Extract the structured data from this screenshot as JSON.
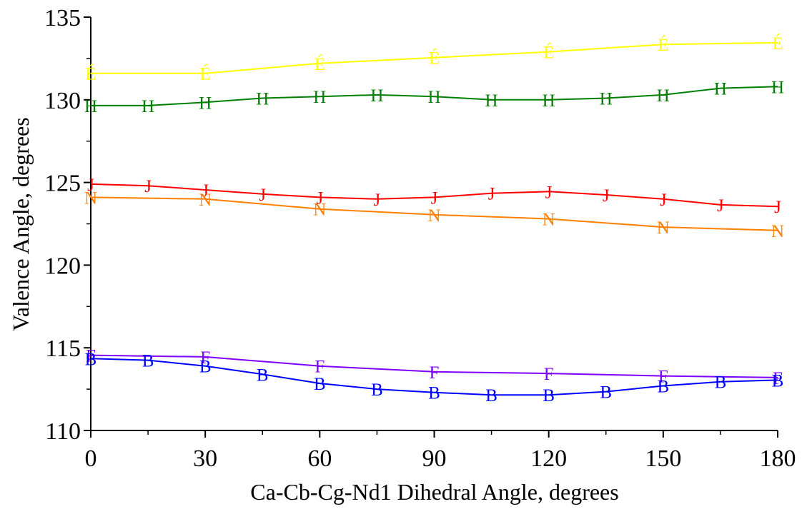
{
  "chart_data": {
    "type": "line",
    "xlabel": "Ca-Cb-Cg-Nd1 Dihedral Angle, degrees",
    "ylabel": "Valence Angle, degrees",
    "xlim": [
      0,
      180
    ],
    "ylim": [
      110,
      135
    ],
    "xticks": [
      0,
      30,
      60,
      90,
      120,
      150,
      180
    ],
    "yticks": [
      110,
      115,
      120,
      125,
      130,
      135
    ],
    "x_minor_ticks": [
      15,
      45,
      75,
      105,
      135,
      165
    ],
    "y_minor_ticks": [
      112.5,
      117.5,
      122.5,
      127.5,
      132.5
    ],
    "grid": false,
    "series": [
      {
        "marker": "É",
        "color": "#ffff00",
        "points": [
          [
            0,
            131.6
          ],
          [
            30,
            131.6
          ],
          [
            60,
            132.2
          ],
          [
            90,
            132.55
          ],
          [
            120,
            132.9
          ],
          [
            150,
            133.35
          ],
          [
            180,
            133.45
          ]
        ]
      },
      {
        "marker": "H",
        "color": "#008000",
        "points": [
          [
            0,
            129.65
          ],
          [
            15,
            129.65
          ],
          [
            30,
            129.85
          ],
          [
            45,
            130.1
          ],
          [
            60,
            130.2
          ],
          [
            75,
            130.3
          ],
          [
            90,
            130.2
          ],
          [
            105,
            130.0
          ],
          [
            120,
            130.0
          ],
          [
            135,
            130.1
          ],
          [
            150,
            130.3
          ],
          [
            165,
            130.7
          ],
          [
            180,
            130.8
          ]
        ]
      },
      {
        "marker": "J",
        "color": "#ff0000",
        "points": [
          [
            0,
            124.9
          ],
          [
            15,
            124.8
          ],
          [
            30,
            124.55
          ],
          [
            45,
            124.3
          ],
          [
            60,
            124.1
          ],
          [
            75,
            124.0
          ],
          [
            90,
            124.1
          ],
          [
            105,
            124.35
          ],
          [
            120,
            124.45
          ],
          [
            135,
            124.25
          ],
          [
            150,
            124.0
          ],
          [
            165,
            123.65
          ],
          [
            180,
            123.55
          ]
        ]
      },
      {
        "marker": "N",
        "color": "#ff8000",
        "points": [
          [
            0,
            124.1
          ],
          [
            30,
            124.0
          ],
          [
            60,
            123.4
          ],
          [
            90,
            123.05
          ],
          [
            120,
            122.8
          ],
          [
            150,
            122.3
          ],
          [
            180,
            122.1
          ]
        ]
      },
      {
        "marker": "F",
        "color": "#8000ff",
        "points": [
          [
            0,
            114.55
          ],
          [
            30,
            114.45
          ],
          [
            60,
            113.9
          ],
          [
            90,
            113.55
          ],
          [
            120,
            113.45
          ],
          [
            150,
            113.3
          ],
          [
            180,
            113.2
          ]
        ]
      },
      {
        "marker": "B",
        "color": "#0000ff",
        "points": [
          [
            0,
            114.35
          ],
          [
            15,
            114.25
          ],
          [
            30,
            113.9
          ],
          [
            45,
            113.4
          ],
          [
            60,
            112.85
          ],
          [
            75,
            112.5
          ],
          [
            90,
            112.3
          ],
          [
            105,
            112.15
          ],
          [
            120,
            112.15
          ],
          [
            135,
            112.35
          ],
          [
            150,
            112.7
          ],
          [
            165,
            112.95
          ],
          [
            180,
            113.05
          ]
        ]
      }
    ]
  }
}
